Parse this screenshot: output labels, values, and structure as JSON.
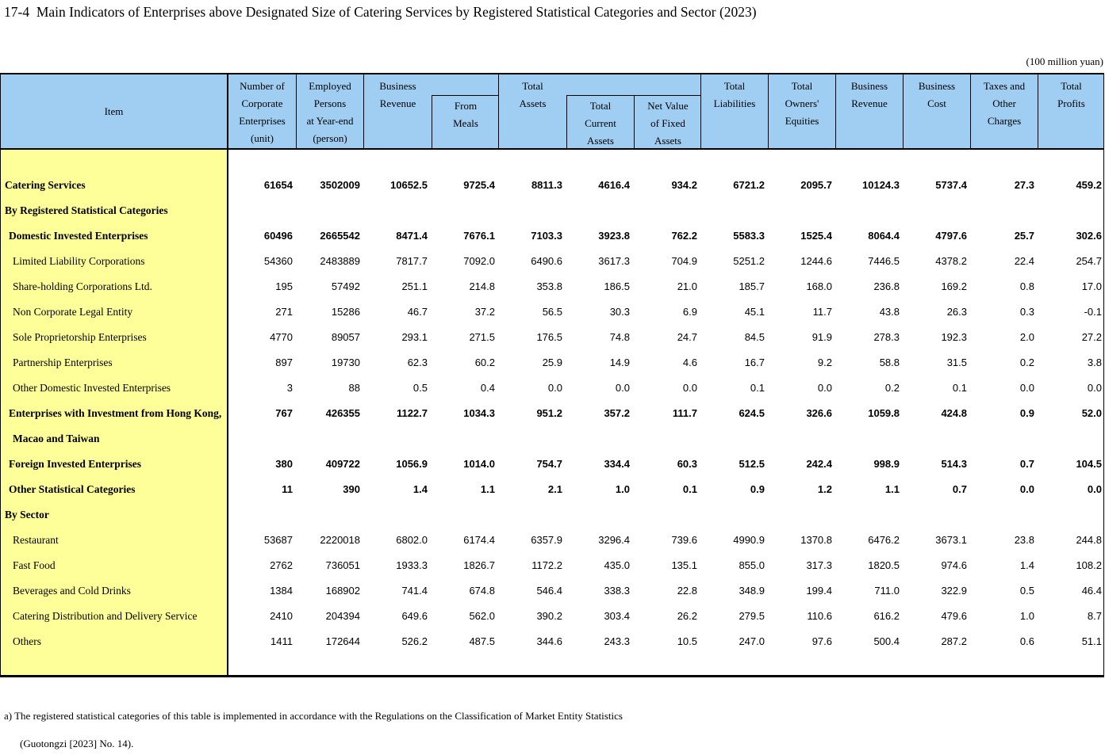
{
  "title": "17-4  Main Indicators of Enterprises above Designated Size of Catering Services by Registered Statistical Categories and Sector (2023)",
  "unit_note": "(100 million yuan)",
  "colors": {
    "header_bg": "#A0CDF2",
    "item_column_bg": "#FFFF99",
    "border": "#000000"
  },
  "table": {
    "header": {
      "item": "Item",
      "number_of_corporate_enterprises": "Number of\nCorporate\nEnterprises\n(unit)",
      "employed_persons": "Employed\nPersons\nat Year-end\n(person)",
      "business_revenue": "Business\nRevenue",
      "from_meals": "From\nMeals",
      "total_assets": "Total\nAssets",
      "total_current_assets": "Total\nCurrent\nAssets",
      "net_value_fixed_assets": "Net Value\nof Fixed\nAssets",
      "total_liabilities": "Total\nLiabilities",
      "total_owners_equities": "Total\nOwners'\nEquities",
      "business_revenue_2": "Business\nRevenue",
      "business_cost": "Business\nCost",
      "taxes_and_other_charges": "Taxes and\nOther\nCharges",
      "total_profits": "Total\nProfits"
    },
    "rows": [
      {
        "label": "Catering Services",
        "bold": true,
        "indent": 0,
        "values": [
          "61654",
          "3502009",
          "10652.5",
          "9725.4",
          "8811.3",
          "4616.4",
          "934.2",
          "6721.2",
          "2095.7",
          "10124.3",
          "5737.4",
          "27.3",
          "459.2"
        ]
      },
      {
        "label": "By Registered Statistical Categories",
        "bold": true,
        "indent": 0,
        "values": []
      },
      {
        "label": "Domestic Invested Enterprises",
        "bold": true,
        "indent": 1,
        "values": [
          "60496",
          "2665542",
          "8471.4",
          "7676.1",
          "7103.3",
          "3923.8",
          "762.2",
          "5583.3",
          "1525.4",
          "8064.4",
          "4797.6",
          "25.7",
          "302.6"
        ]
      },
      {
        "label": "Limited Liability Corporations",
        "bold": false,
        "indent": 2,
        "values": [
          "54360",
          "2483889",
          "7817.7",
          "7092.0",
          "6490.6",
          "3617.3",
          "704.9",
          "5251.2",
          "1244.6",
          "7446.5",
          "4378.2",
          "22.4",
          "254.7"
        ]
      },
      {
        "label": "Share-holding Corporations Ltd.",
        "bold": false,
        "indent": 2,
        "values": [
          "195",
          "57492",
          "251.1",
          "214.8",
          "353.8",
          "186.5",
          "21.0",
          "185.7",
          "168.0",
          "236.8",
          "169.2",
          "0.8",
          "17.0"
        ]
      },
      {
        "label": "Non Corporate Legal Entity",
        "bold": false,
        "indent": 2,
        "values": [
          "271",
          "15286",
          "46.7",
          "37.2",
          "56.5",
          "30.3",
          "6.9",
          "45.1",
          "11.7",
          "43.8",
          "26.3",
          "0.3",
          "-0.1"
        ]
      },
      {
        "label": "Sole Proprietorship Enterprises",
        "bold": false,
        "indent": 2,
        "values": [
          "4770",
          "89057",
          "293.1",
          "271.5",
          "176.5",
          "74.8",
          "24.7",
          "84.5",
          "91.9",
          "278.3",
          "192.3",
          "2.0",
          "27.2"
        ]
      },
      {
        "label": "Partnership Enterprises",
        "bold": false,
        "indent": 2,
        "values": [
          "897",
          "19730",
          "62.3",
          "60.2",
          "25.9",
          "14.9",
          "4.6",
          "16.7",
          "9.2",
          "58.8",
          "31.5",
          "0.2",
          "3.8"
        ]
      },
      {
        "label": "Other Domestic Invested Enterprises",
        "bold": false,
        "indent": 2,
        "values": [
          "3",
          "88",
          "0.5",
          "0.4",
          "0.0",
          "0.0",
          "0.0",
          "0.1",
          "0.0",
          "0.2",
          "0.1",
          "0.0",
          "0.0"
        ]
      },
      {
        "label": "Enterprises with Investment from Hong Kong,",
        "bold": true,
        "indent": 1,
        "values": [
          "767",
          "426355",
          "1122.7",
          "1034.3",
          "951.2",
          "357.2",
          "111.7",
          "624.5",
          "326.6",
          "1059.8",
          "424.8",
          "0.9",
          "52.0"
        ]
      },
      {
        "label": "Macao and Taiwan",
        "bold": true,
        "indent": 2,
        "values": []
      },
      {
        "label": "Foreign Invested Enterprises",
        "bold": true,
        "indent": 1,
        "values": [
          "380",
          "409722",
          "1056.9",
          "1014.0",
          "754.7",
          "334.4",
          "60.3",
          "512.5",
          "242.4",
          "998.9",
          "514.3",
          "0.7",
          "104.5"
        ]
      },
      {
        "label": "Other Statistical Categories",
        "bold": true,
        "indent": 1,
        "values": [
          "11",
          "390",
          "1.4",
          "1.1",
          "2.1",
          "1.0",
          "0.1",
          "0.9",
          "1.2",
          "1.1",
          "0.7",
          "0.0",
          "0.0"
        ]
      },
      {
        "label": "By Sector",
        "bold": true,
        "indent": 0,
        "values": []
      },
      {
        "label": "Restaurant",
        "bold": false,
        "indent": 2,
        "values": [
          "53687",
          "2220018",
          "6802.0",
          "6174.4",
          "6357.9",
          "3296.4",
          "739.6",
          "4990.9",
          "1370.8",
          "6476.2",
          "3673.1",
          "23.8",
          "244.8"
        ]
      },
      {
        "label": "Fast Food",
        "bold": false,
        "indent": 2,
        "values": [
          "2762",
          "736051",
          "1933.3",
          "1826.7",
          "1172.2",
          "435.0",
          "135.1",
          "855.0",
          "317.3",
          "1820.5",
          "974.6",
          "1.4",
          "108.2"
        ]
      },
      {
        "label": "Beverages and Cold Drinks",
        "bold": false,
        "indent": 2,
        "values": [
          "1384",
          "168902",
          "741.4",
          "674.8",
          "546.4",
          "338.3",
          "22.8",
          "348.9",
          "199.4",
          "711.0",
          "322.9",
          "0.5",
          "46.4"
        ]
      },
      {
        "label": "Catering Distribution and Delivery Service",
        "bold": false,
        "indent": 2,
        "values": [
          "2410",
          "204394",
          "649.6",
          "562.0",
          "390.2",
          "303.4",
          "26.2",
          "279.5",
          "110.6",
          "616.2",
          "479.6",
          "1.0",
          "8.7"
        ]
      },
      {
        "label": "Others",
        "bold": false,
        "indent": 2,
        "values": [
          "1411",
          "172644",
          "526.2",
          "487.5",
          "344.6",
          "243.3",
          "10.5",
          "247.0",
          "97.6",
          "500.4",
          "287.2",
          "0.6",
          "51.1"
        ]
      }
    ]
  },
  "footnote": {
    "line1": "a) The registered statistical categories of this table is implemented in accordance with the Regulations on the Classification of Market Entity Statistics",
    "line2": "(Guotongzi [2023] No. 14)."
  }
}
